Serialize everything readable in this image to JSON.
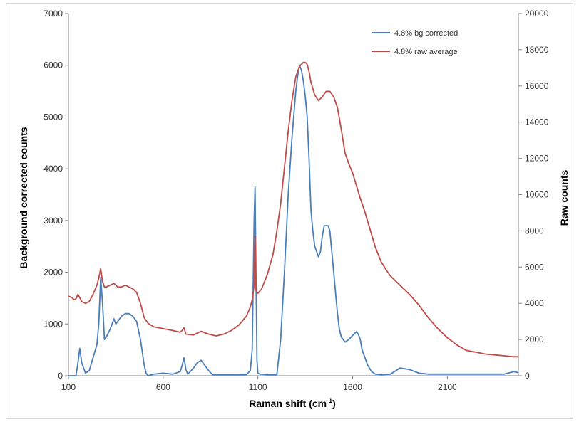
{
  "chart_data": {
    "type": "line",
    "title": "",
    "xlabel": "Raman shift (cm",
    "xlabel_sup": "-1",
    "xlabel_close": ")",
    "ylabel_left": "Background corrected counts",
    "ylabel_right": "Raw counts",
    "xlim": [
      100,
      2475
    ],
    "ylim_left": [
      0,
      7000
    ],
    "ylim_right": [
      0,
      20000
    ],
    "x_ticks": [
      "100",
      "600",
      "1100",
      "1600",
      "2100"
    ],
    "x_tick_values": [
      100,
      600,
      1100,
      1600,
      2100
    ],
    "y_ticks_left": [
      "0",
      "1000",
      "2000",
      "3000",
      "4000",
      "5000",
      "6000",
      "7000"
    ],
    "y_tick_values_left": [
      0,
      1000,
      2000,
      3000,
      4000,
      5000,
      6000,
      7000
    ],
    "y_ticks_right": [
      "0",
      "2000",
      "4000",
      "6000",
      "8000",
      "10000",
      "12000",
      "14000",
      "16000",
      "18000",
      "20000"
    ],
    "y_tick_values_right": [
      0,
      2000,
      4000,
      6000,
      8000,
      10000,
      12000,
      14000,
      16000,
      18000,
      20000
    ],
    "grid": false,
    "legend_position": "top-right",
    "series": [
      {
        "name": "4.8% bg corrected",
        "axis": "left",
        "color": "#4a7ebb",
        "x": [
          100,
          130,
          140,
          150,
          160,
          170,
          190,
          210,
          230,
          250,
          260,
          270,
          280,
          290,
          300,
          320,
          340,
          350,
          360,
          380,
          400,
          420,
          440,
          460,
          480,
          500,
          510,
          520,
          550,
          600,
          650,
          690,
          700,
          710,
          720,
          730,
          760,
          780,
          800,
          820,
          840,
          860,
          880,
          900,
          950,
          1000,
          1040,
          1060,
          1070,
          1080,
          1085,
          1090,
          1095,
          1100,
          1110,
          1150,
          1200,
          1220,
          1240,
          1260,
          1280,
          1300,
          1310,
          1320,
          1330,
          1340,
          1350,
          1360,
          1370,
          1380,
          1390,
          1400,
          1410,
          1420,
          1430,
          1440,
          1450,
          1460,
          1470,
          1480,
          1490,
          1500,
          1510,
          1520,
          1530,
          1540,
          1560,
          1580,
          1600,
          1620,
          1630,
          1640,
          1650,
          1660,
          1680,
          1700,
          1720,
          1750,
          1800,
          1850,
          1900,
          1950,
          2000,
          2100,
          2200,
          2300,
          2400,
          2450,
          2475
        ],
        "y": [
          0,
          0,
          0,
          250,
          530,
          250,
          50,
          100,
          350,
          600,
          1000,
          1900,
          1400,
          700,
          750,
          900,
          1100,
          1000,
          1050,
          1150,
          1200,
          1200,
          1150,
          1050,
          700,
          200,
          50,
          0,
          30,
          50,
          30,
          80,
          200,
          350,
          120,
          30,
          150,
          250,
          300,
          200,
          100,
          20,
          20,
          20,
          20,
          20,
          20,
          100,
          500,
          3000,
          3650,
          2000,
          300,
          50,
          30,
          20,
          20,
          700,
          2000,
          3500,
          4600,
          5500,
          5800,
          6000,
          5900,
          5700,
          5400,
          5000,
          4200,
          3200,
          2800,
          2500,
          2400,
          2300,
          2400,
          2700,
          2900,
          2900,
          2900,
          2800,
          2400,
          2000,
          1600,
          1200,
          900,
          750,
          650,
          700,
          780,
          850,
          800,
          700,
          500,
          400,
          200,
          80,
          30,
          20,
          30,
          150,
          120,
          50,
          30,
          30,
          30,
          30,
          30,
          80,
          60
        ]
      },
      {
        "name": "4.8% raw average",
        "axis": "right",
        "color": "#be4b48",
        "x": [
          100,
          120,
          130,
          140,
          150,
          170,
          190,
          210,
          230,
          250,
          260,
          270,
          280,
          290,
          300,
          320,
          340,
          360,
          380,
          400,
          420,
          440,
          460,
          480,
          500,
          520,
          550,
          600,
          650,
          690,
          700,
          710,
          720,
          760,
          800,
          840,
          880,
          920,
          960,
          1000,
          1040,
          1060,
          1070,
          1080,
          1085,
          1090,
          1100,
          1120,
          1150,
          1180,
          1200,
          1220,
          1240,
          1260,
          1280,
          1300,
          1320,
          1340,
          1350,
          1360,
          1370,
          1380,
          1400,
          1420,
          1440,
          1460,
          1480,
          1500,
          1520,
          1540,
          1560,
          1580,
          1600,
          1620,
          1640,
          1660,
          1680,
          1700,
          1720,
          1750,
          1780,
          1800,
          1850,
          1900,
          1950,
          2000,
          2050,
          2100,
          2150,
          2200,
          2250,
          2300,
          2350,
          2400,
          2450,
          2475
        ],
        "y": [
          4400,
          4300,
          4200,
          4250,
          4500,
          4100,
          4000,
          4100,
          4500,
          5000,
          5400,
          5900,
          5200,
          4900,
          4900,
          5000,
          5100,
          4900,
          4900,
          5000,
          4900,
          4800,
          4600,
          4000,
          3200,
          2900,
          2700,
          2600,
          2500,
          2400,
          2500,
          2650,
          2300,
          2250,
          2450,
          2300,
          2200,
          2300,
          2500,
          2800,
          3300,
          3800,
          4200,
          5000,
          7700,
          4700,
          4550,
          4800,
          5600,
          6700,
          8000,
          9500,
          11500,
          13500,
          15200,
          16500,
          17100,
          17300,
          17300,
          17200,
          16800,
          16200,
          15500,
          15200,
          15400,
          15700,
          15700,
          15400,
          14800,
          13600,
          12300,
          11700,
          11200,
          10500,
          9800,
          9200,
          8500,
          7800,
          7100,
          6300,
          5800,
          5500,
          5000,
          4500,
          3900,
          3200,
          2600,
          2100,
          1700,
          1400,
          1300,
          1200,
          1150,
          1100,
          1050,
          1050
        ]
      }
    ]
  }
}
